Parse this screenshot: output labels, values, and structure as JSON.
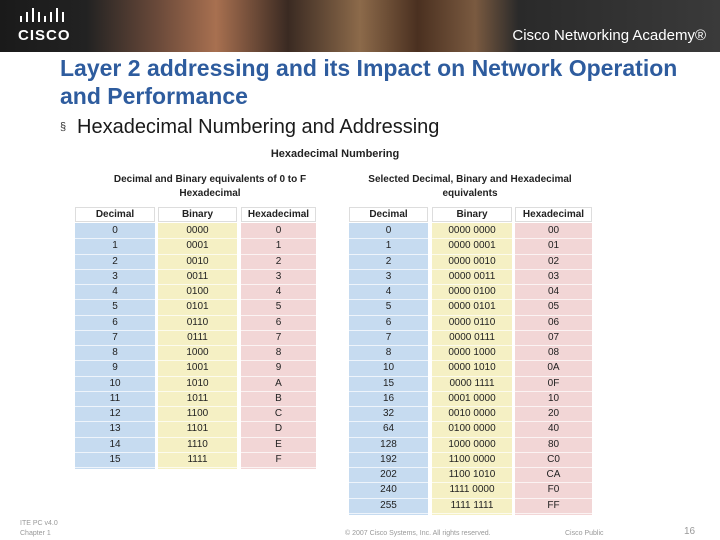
{
  "header": {
    "logo": "CISCO",
    "brand": "Cisco Networking Academy®"
  },
  "title": "Layer 2 addressing and its Impact on Network Operation and Performance",
  "bullet": "Hexadecimal Numbering and Addressing",
  "figure": {
    "title": "Hexadecimal Numbering",
    "tables": [
      {
        "title": "Decimal and Binary equivalents of 0 to F Hexadecimal",
        "columns": [
          "Decimal",
          "Binary",
          "Hexadecimal"
        ],
        "rows": [
          [
            "0",
            "0000",
            "0"
          ],
          [
            "1",
            "0001",
            "1"
          ],
          [
            "2",
            "0010",
            "2"
          ],
          [
            "3",
            "0011",
            "3"
          ],
          [
            "4",
            "0100",
            "4"
          ],
          [
            "5",
            "0101",
            "5"
          ],
          [
            "6",
            "0110",
            "6"
          ],
          [
            "7",
            "0111",
            "7"
          ],
          [
            "8",
            "1000",
            "8"
          ],
          [
            "9",
            "1001",
            "9"
          ],
          [
            "10",
            "1010",
            "A"
          ],
          [
            "11",
            "1011",
            "B"
          ],
          [
            "12",
            "1100",
            "C"
          ],
          [
            "13",
            "1101",
            "D"
          ],
          [
            "14",
            "1110",
            "E"
          ],
          [
            "15",
            "1111",
            "F"
          ]
        ]
      },
      {
        "title": "Selected Decimal, Binary and Hexadecimal equivalents",
        "columns": [
          "Decimal",
          "Binary",
          "Hexadecimal"
        ],
        "rows": [
          [
            "0",
            "0000 0000",
            "00"
          ],
          [
            "1",
            "0000 0001",
            "01"
          ],
          [
            "2",
            "0000 0010",
            "02"
          ],
          [
            "3",
            "0000 0011",
            "03"
          ],
          [
            "4",
            "0000 0100",
            "04"
          ],
          [
            "5",
            "0000 0101",
            "05"
          ],
          [
            "6",
            "0000 0110",
            "06"
          ],
          [
            "7",
            "0000 0111",
            "07"
          ],
          [
            "8",
            "0000 1000",
            "08"
          ],
          [
            "10",
            "0000 1010",
            "0A"
          ],
          [
            "15",
            "0000 1111",
            "0F"
          ],
          [
            "16",
            "0001 0000",
            "10"
          ],
          [
            "32",
            "0010 0000",
            "20"
          ],
          [
            "64",
            "0100 0000",
            "40"
          ],
          [
            "128",
            "1000 0000",
            "80"
          ],
          [
            "192",
            "1100 0000",
            "C0"
          ],
          [
            "202",
            "1100 1010",
            "CA"
          ],
          [
            "240",
            "1111 0000",
            "F0"
          ],
          [
            "255",
            "1111 1111",
            "FF"
          ]
        ]
      }
    ]
  },
  "footer": {
    "course": "ITE PC v4.0",
    "chapter": "Chapter 1",
    "copyright": "© 2007 Cisco Systems, Inc. All rights reserved.",
    "classification": "Cisco Public",
    "page": "16"
  }
}
